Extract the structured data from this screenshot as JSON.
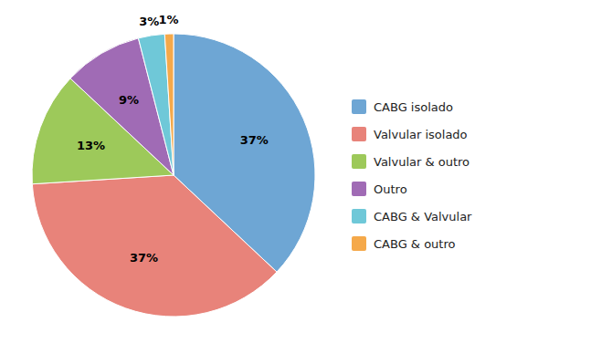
{
  "chart_data": {
    "type": "pie",
    "categories": [
      "CABG isolado",
      "Valvular isolado",
      "Valvular & outro",
      "Outro",
      "CABG & Valvular",
      "CABG & outro"
    ],
    "values": [
      37,
      37,
      13,
      9,
      3,
      1
    ],
    "value_labels": [
      "37%",
      "37%",
      "13%",
      "9%",
      "3%",
      "1%"
    ],
    "colors": [
      "#6EA6D4",
      "#E8837A",
      "#9DC95A",
      "#A06BB5",
      "#6FC8D8",
      "#F5A94A"
    ],
    "data_labels": true,
    "legend": "right"
  }
}
